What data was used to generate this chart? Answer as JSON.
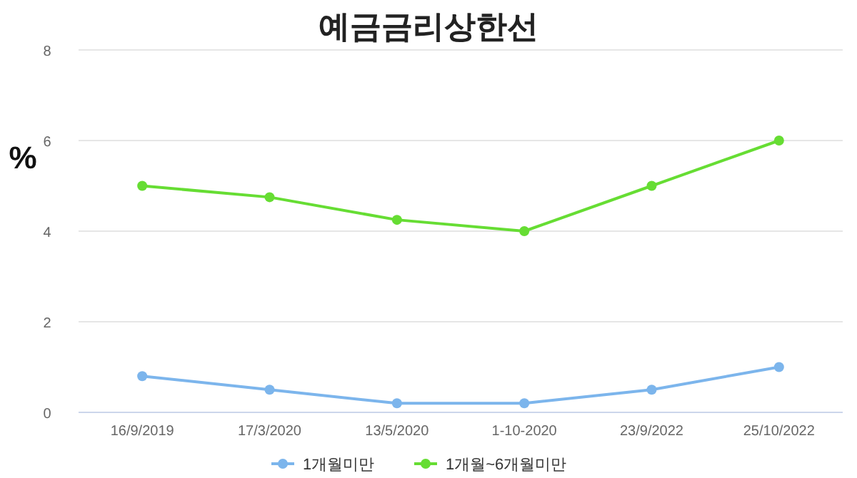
{
  "chart_data": {
    "type": "line",
    "title": "예금금리상한선",
    "ylabel": "%",
    "categories": [
      "16/9/2019",
      "17/3/2020",
      "13/5/2020",
      "1-10-2020",
      "23/9/2022",
      "25/10/2022"
    ],
    "series": [
      {
        "name": "1개월미만",
        "color": "#7cb5ec",
        "values": [
          0.8,
          0.5,
          0.2,
          0.2,
          0.5,
          1.0
        ]
      },
      {
        "name": "1개월~6개월미만",
        "color": "#66dd33",
        "values": [
          5,
          4.75,
          4.25,
          4,
          5,
          6
        ]
      }
    ],
    "ylim": [
      0,
      8
    ],
    "yticks": [
      0,
      2,
      4,
      6,
      8
    ],
    "grid": "y",
    "legend": "bottom",
    "marker": "circle",
    "line_style": "solid"
  }
}
